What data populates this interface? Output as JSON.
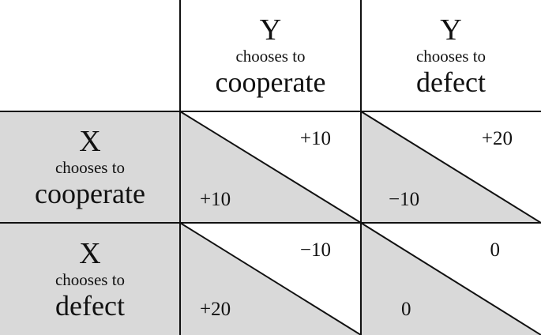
{
  "colors": {
    "shade": "#d9d9d9",
    "line": "#111111",
    "background": "#ffffff"
  },
  "columns": [
    {
      "player": "Y",
      "sub": "chooses to",
      "choice": "cooperate"
    },
    {
      "player": "Y",
      "sub": "chooses to",
      "choice": "defect"
    }
  ],
  "rows": [
    {
      "player": "X",
      "sub": "chooses to",
      "choice": "cooperate"
    },
    {
      "player": "X",
      "sub": "chooses to",
      "choice": "defect"
    }
  ],
  "payoffs": {
    "cc": {
      "y": "+10",
      "x": "+10"
    },
    "cd": {
      "y": "+20",
      "x": "−10"
    },
    "dc": {
      "y": "−10",
      "x": "+20"
    },
    "dd": {
      "y": "0",
      "x": "0"
    }
  }
}
